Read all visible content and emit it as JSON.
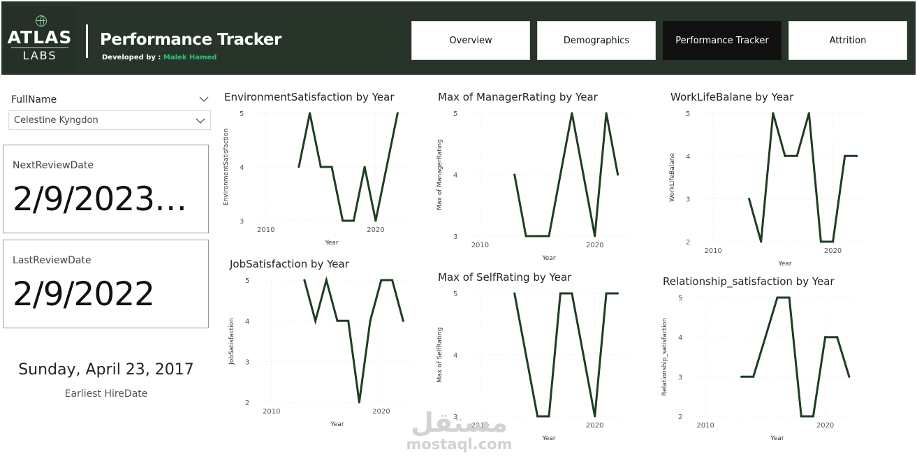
{
  "header": {
    "logo_top": "ATLAS",
    "logo_bottom": "LABS",
    "title": "Performance Tracker",
    "developed_by_label": "Developed by : ",
    "developer": "Malek Hamed",
    "accent": "#28c76f",
    "background": "#28342a"
  },
  "nav": {
    "tabs": [
      {
        "label": "Overview",
        "active": false
      },
      {
        "label": "Demographics",
        "active": false
      },
      {
        "label": "Performance Tracker",
        "active": true
      },
      {
        "label": "Attrition",
        "active": false
      }
    ]
  },
  "slicer": {
    "label": "FullName",
    "value": "Celestine Kyngdon",
    "icon": "chevron-down-icon"
  },
  "cards": {
    "next_review": {
      "label": "NextReviewDate",
      "value": "2/9/2023…"
    },
    "last_review": {
      "label": "LastReviewDate",
      "value": "2/9/2022"
    }
  },
  "hire": {
    "value": "Sunday, April 23, 2017",
    "label": "Earliest HireDate"
  },
  "watermark": {
    "arabic": "مستقل",
    "latin": "mostaql.com"
  },
  "line_color": "#1f3d22",
  "chart_data": [
    {
      "type": "line",
      "title": "EnvironmentSatisfaction by Year",
      "xlabel": "Year",
      "ylabel": "EnvironmentSatisfaction",
      "x": [
        2013,
        2014,
        2015,
        2016,
        2017,
        2018,
        2019,
        2020,
        2021,
        2022
      ],
      "y": [
        4,
        5,
        4,
        4,
        3,
        3,
        4,
        3,
        4,
        5
      ],
      "xticks": [
        2010,
        2020
      ],
      "yticks": [
        3,
        4,
        5
      ],
      "xlim": [
        2009,
        2023
      ],
      "ylim": [
        3,
        5
      ]
    },
    {
      "type": "line",
      "title": "Max of ManagerRating by Year",
      "xlabel": "Year",
      "ylabel": "Max of ManagerRating",
      "x": [
        2013,
        2014,
        2015,
        2016,
        2017,
        2018,
        2019,
        2020,
        2021,
        2022
      ],
      "y": [
        4,
        3,
        3,
        3,
        4,
        5,
        4,
        3,
        5,
        4
      ],
      "xticks": [
        2010,
        2020
      ],
      "yticks": [
        3,
        4,
        5
      ],
      "xlim": [
        2009,
        2023
      ],
      "ylim": [
        3,
        5
      ]
    },
    {
      "type": "line",
      "title": "WorkLifeBalane by Year",
      "xlabel": "Year",
      "ylabel": "WorkLifeBalane",
      "x": [
        2013,
        2014,
        2015,
        2016,
        2017,
        2018,
        2019,
        2020,
        2021,
        2022
      ],
      "y": [
        3,
        2,
        5,
        4,
        4,
        5,
        2,
        2,
        4,
        4
      ],
      "xticks": [
        2010,
        2020
      ],
      "yticks": [
        2,
        3,
        4,
        5
      ],
      "xlim": [
        2009,
        2023
      ],
      "ylim": [
        2,
        5
      ]
    },
    {
      "type": "line",
      "title": "JobSatisfaction by Year",
      "xlabel": "Year",
      "ylabel": "JobSatisfaction",
      "x": [
        2013,
        2014,
        2015,
        2016,
        2017,
        2018,
        2019,
        2020,
        2021,
        2022
      ],
      "y": [
        5,
        4,
        5,
        4,
        4,
        2,
        4,
        5,
        5,
        4
      ],
      "xticks": [
        2010,
        2020
      ],
      "yticks": [
        2,
        3,
        4,
        5
      ],
      "xlim": [
        2009,
        2023
      ],
      "ylim": [
        2,
        5
      ]
    },
    {
      "type": "line",
      "title": "Max of SelfRating by Year",
      "xlabel": "Year",
      "ylabel": "Max of SelfRating",
      "x": [
        2013,
        2014,
        2015,
        2016,
        2017,
        2018,
        2019,
        2020,
        2021,
        2022
      ],
      "y": [
        5,
        4,
        3,
        3,
        5,
        5,
        4,
        3,
        5,
        5
      ],
      "xticks": [
        2010,
        2020
      ],
      "yticks": [
        3,
        4,
        5
      ],
      "xlim": [
        2009,
        2023
      ],
      "ylim": [
        3,
        5
      ]
    },
    {
      "type": "line",
      "title": "Relationship_satisfaction by Year",
      "xlabel": "Year",
      "ylabel": "Relationship_satisfaction",
      "x": [
        2013,
        2014,
        2015,
        2016,
        2017,
        2018,
        2019,
        2020,
        2021,
        2022
      ],
      "y": [
        3,
        3,
        4,
        5,
        5,
        2,
        2,
        4,
        4,
        3
      ],
      "xticks": [
        2010,
        2020
      ],
      "yticks": [
        2,
        3,
        4,
        5
      ],
      "xlim": [
        2009,
        2023
      ],
      "ylim": [
        2,
        5
      ]
    }
  ]
}
